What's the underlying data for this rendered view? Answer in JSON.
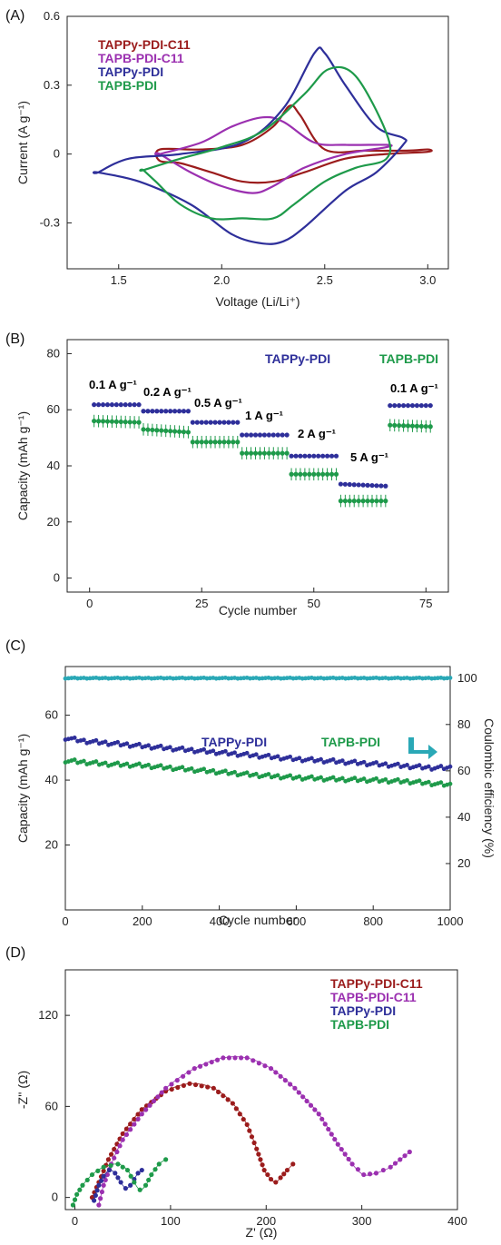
{
  "colors": {
    "tappy_c11": "#9b1c1c",
    "tapb_c11": "#9b30b0",
    "tappy": "#2e2f9a",
    "tapb": "#1e9a4a",
    "ce": "#2aa8b6"
  },
  "chart_data": [
    {
      "panel": "(A)",
      "type": "line",
      "xlabel": "Voltage (Li/Li⁺)",
      "ylabel": "Current (A g⁻¹)",
      "xlim": [
        1.25,
        3.1
      ],
      "ylim": [
        -0.5,
        0.6
      ],
      "xticks": [
        "1.5",
        "2.0",
        "2.5",
        "3.0"
      ],
      "yticks": [
        "-0.3",
        "0",
        "0.3",
        "0.6"
      ],
      "legend": [
        "TAPPy-PDI-C11",
        "TAPB-PDI-C11",
        "TAPPy-PDI",
        "TAPB-PDI"
      ],
      "series": [
        {
          "name": "TAPPy-PDI-C11",
          "color_key": "tappy_c11",
          "x": [
            1.7,
            1.9,
            2.1,
            2.25,
            2.33,
            2.38,
            2.5,
            2.7,
            2.9,
            3.0,
            3.0,
            2.8,
            2.6,
            2.4,
            2.25,
            2.1,
            1.95,
            1.8,
            1.7
          ],
          "y": [
            0.02,
            0.02,
            0.04,
            0.12,
            0.21,
            0.17,
            0.02,
            0.015,
            0.015,
            0.02,
            0.01,
            0.0,
            -0.02,
            -0.08,
            -0.12,
            -0.12,
            -0.08,
            -0.04,
            -0.03
          ]
        },
        {
          "name": "TAPB-PDI-C11",
          "color_key": "tapb_c11",
          "x": [
            1.7,
            1.9,
            2.05,
            2.2,
            2.3,
            2.45,
            2.6,
            2.8,
            2.8,
            2.6,
            2.4,
            2.25,
            2.15,
            2.0,
            1.85,
            1.7
          ],
          "y": [
            0.0,
            0.05,
            0.12,
            0.16,
            0.14,
            0.05,
            0.04,
            0.04,
            0.03,
            0.0,
            -0.06,
            -0.14,
            -0.17,
            -0.14,
            -0.08,
            0.0
          ]
        },
        {
          "name": "TAPPy-PDI",
          "color_key": "tappy",
          "x": [
            1.4,
            1.55,
            1.8,
            2.1,
            2.3,
            2.45,
            2.5,
            2.6,
            2.75,
            2.88,
            2.88,
            2.75,
            2.6,
            2.4,
            2.3,
            2.2,
            2.05,
            1.85,
            1.6,
            1.4
          ],
          "y": [
            -0.08,
            -0.02,
            0.0,
            0.05,
            0.2,
            0.44,
            0.44,
            0.3,
            0.12,
            0.07,
            0.04,
            -0.08,
            -0.16,
            -0.32,
            -0.38,
            -0.39,
            -0.35,
            -0.22,
            -0.12,
            -0.08
          ]
        },
        {
          "name": "TAPB-PDI",
          "color_key": "tapb",
          "x": [
            1.62,
            1.8,
            2.0,
            2.2,
            2.4,
            2.52,
            2.65,
            2.8,
            2.8,
            2.65,
            2.5,
            2.35,
            2.25,
            2.1,
            1.95,
            1.8,
            1.68,
            1.62
          ],
          "y": [
            -0.07,
            -0.02,
            0.03,
            0.1,
            0.26,
            0.37,
            0.34,
            0.09,
            -0.02,
            -0.06,
            -0.12,
            -0.22,
            -0.28,
            -0.28,
            -0.28,
            -0.22,
            -0.12,
            -0.07
          ]
        }
      ]
    },
    {
      "panel": "(B)",
      "type": "scatter",
      "xlabel": "Cycle number",
      "ylabel": "Capacity (mAh g⁻¹)",
      "xlim": [
        -5,
        80
      ],
      "ylim": [
        -5,
        85
      ],
      "xticks": [
        "0",
        "25",
        "50",
        "75"
      ],
      "yticks": [
        "0",
        "20",
        "40",
        "60",
        "80"
      ],
      "legend": [
        "TAPPy-PDI",
        "TAPB-PDI"
      ],
      "annotations": [
        "0.1 A g⁻¹",
        "0.2 A g⁻¹",
        "0.5 A g⁻¹",
        "1 A g⁻¹",
        "2 A g⁻¹",
        "5 A g⁻¹",
        "0.1 A g⁻¹"
      ],
      "segments": [
        {
          "rate": "0.1",
          "start": 1,
          "end": 11,
          "tappy": [
            61.8,
            61.8
          ],
          "tapb": [
            56.0,
            55.5
          ]
        },
        {
          "rate": "0.2",
          "start": 12,
          "end": 22,
          "tappy": [
            59.5,
            59.5
          ],
          "tapb": [
            53.0,
            52.0
          ]
        },
        {
          "rate": "0.5",
          "start": 23,
          "end": 33,
          "tappy": [
            55.5,
            55.5
          ],
          "tapb": [
            48.5,
            48.5
          ]
        },
        {
          "rate": "1",
          "start": 34,
          "end": 44,
          "tappy": [
            51.0,
            51.0
          ],
          "tapb": [
            44.5,
            44.5
          ]
        },
        {
          "rate": "2",
          "start": 45,
          "end": 55,
          "tappy": [
            43.5,
            43.5
          ],
          "tapb": [
            37.0,
            37.0
          ]
        },
        {
          "rate": "5",
          "start": 56,
          "end": 66,
          "tappy": [
            33.5,
            32.8
          ],
          "tapb": [
            27.5,
            27.5
          ]
        },
        {
          "rate": "0.1",
          "start": 67,
          "end": 76,
          "tappy": [
            61.5,
            61.5
          ],
          "tapb": [
            54.5,
            54.0
          ]
        }
      ]
    },
    {
      "panel": "(C)",
      "type": "scatter",
      "xlabel": "Cycle number",
      "ylabel": "Capacity (mAh g⁻¹)",
      "y2label": "Coulombic efficiency (%)",
      "xlim": [
        0,
        1000
      ],
      "ylim": [
        0,
        75
      ],
      "y2lim": [
        0,
        105
      ],
      "xticks": [
        "0",
        "200",
        "400",
        "600",
        "800",
        "1000"
      ],
      "yticks": [
        "20",
        "40",
        "60"
      ],
      "y2ticks": [
        "20",
        "40",
        "60",
        "80",
        "100"
      ],
      "legend": [
        "TAPPy-PDI",
        "TAPB-PDI"
      ],
      "series": [
        {
          "name": "TAPPy-PDI",
          "color_key": "tappy",
          "x": [
            0,
            50,
            100,
            200,
            300,
            400,
            500,
            600,
            700,
            800,
            900,
            950,
            1000
          ],
          "y": [
            53,
            52,
            51.5,
            50.5,
            49.5,
            48.5,
            47.5,
            46.5,
            45.8,
            45.0,
            44.2,
            43.8,
            43.8
          ]
        },
        {
          "name": "TAPB-PDI",
          "color_key": "tapb",
          "x": [
            0,
            50,
            100,
            200,
            300,
            400,
            500,
            600,
            700,
            800,
            900,
            950,
            1000
          ],
          "y": [
            46,
            45.5,
            45,
            44.5,
            43.5,
            42.5,
            41.5,
            40.8,
            40.3,
            40.0,
            39.5,
            39.0,
            38.5
          ]
        },
        {
          "name": "Coulombic efficiency",
          "color_key": "ce",
          "axis": "y2",
          "x": [
            0,
            1000
          ],
          "y": [
            100,
            100
          ]
        }
      ]
    },
    {
      "panel": "(D)",
      "type": "scatter",
      "xlabel": "Z' (Ω)",
      "ylabel": "-Z'' (Ω)",
      "xlim": [
        -10,
        400
      ],
      "ylim": [
        -8,
        150
      ],
      "xticks": [
        "0",
        "100",
        "200",
        "300",
        "400"
      ],
      "yticks": [
        "0",
        "60",
        "120"
      ],
      "legend": [
        "TAPPy-PDI-C11",
        "TAPB-PDI-C11",
        "TAPPy-PDI",
        "TAPB-PDI"
      ],
      "series": [
        {
          "name": "TAPPy-PDI-C11",
          "color_key": "tappy_c11",
          "x": [
            18,
            25,
            35,
            50,
            70,
            95,
            120,
            145,
            165,
            180,
            190,
            198,
            205,
            210,
            215,
            222,
            228
          ],
          "y": [
            0,
            10,
            25,
            42,
            58,
            70,
            75,
            72,
            62,
            48,
            32,
            18,
            12,
            10,
            13,
            18,
            22
          ]
        },
        {
          "name": "TAPB-PDI-C11",
          "color_key": "tapb_c11",
          "x": [
            25,
            30,
            38,
            50,
            70,
            95,
            125,
            155,
            180,
            205,
            230,
            255,
            275,
            290,
            302,
            315,
            330,
            350
          ],
          "y": [
            -5,
            8,
            22,
            38,
            55,
            72,
            85,
            92,
            92,
            85,
            72,
            55,
            35,
            22,
            15,
            16,
            20,
            30
          ]
        },
        {
          "name": "TAPPy-PDI",
          "color_key": "tappy",
          "x": [
            20,
            25,
            30,
            36,
            42,
            48,
            53,
            58,
            62,
            66,
            70
          ],
          "y": [
            -2,
            8,
            14,
            18,
            16,
            10,
            6,
            8,
            12,
            16,
            18
          ]
        },
        {
          "name": "TAPB-PDI",
          "color_key": "tapb",
          "x": [
            -2,
            2,
            8,
            18,
            30,
            45,
            55,
            62,
            68,
            74,
            80,
            88,
            95
          ],
          "y": [
            -5,
            2,
            8,
            15,
            20,
            22,
            18,
            10,
            5,
            8,
            15,
            22,
            25
          ]
        }
      ]
    }
  ]
}
